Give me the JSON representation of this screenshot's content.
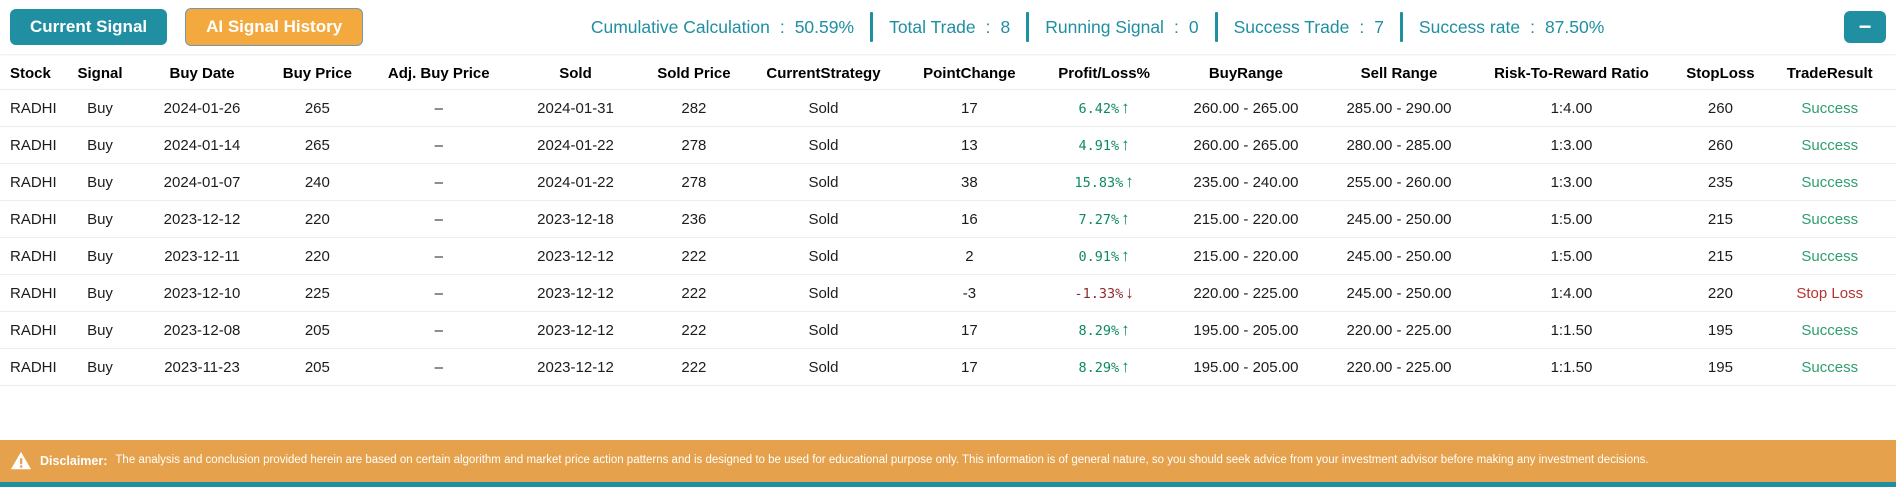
{
  "colors": {
    "teal": "#1F8FA1",
    "orange": "#F4A93F",
    "disclaimer": "#E5A14B",
    "success": "#2E9E6E",
    "loss": "#B23434",
    "profit-green": "#0F8A5F",
    "profit-red": "#8F2B2B"
  },
  "toolbar": {
    "current_signal_label": "Current Signal",
    "ai_signal_history_label": "AI Signal History",
    "collapse_label": "−"
  },
  "stats_bar": {
    "separator": ":",
    "stats": [
      {
        "label": "Cumulative Calculation",
        "value": "50.59%"
      },
      {
        "label": "Total Trade",
        "value": "8"
      },
      {
        "label": "Running Signal",
        "value": "0"
      },
      {
        "label": "Success Trade",
        "value": "7"
      },
      {
        "label": "Success rate",
        "value": "87.50%"
      }
    ]
  },
  "icons": {
    "up_arrow": "↑",
    "down_arrow": "↓"
  },
  "table": {
    "columns": [
      {
        "label": "Stock",
        "key": "stock",
        "align": "left"
      },
      {
        "label": "Signal",
        "key": "signal",
        "align": "center"
      },
      {
        "label": "Buy Date",
        "key": "buy_date",
        "align": "center"
      },
      {
        "label": "Buy Price",
        "key": "buy_price",
        "align": "center"
      },
      {
        "label": "Adj. Buy Price",
        "key": "adj_buy_price",
        "align": "center"
      },
      {
        "label": "Sold",
        "key": "sold_date",
        "align": "center"
      },
      {
        "label": "Sold Price",
        "key": "sold_price",
        "align": "center"
      },
      {
        "label": "CurrentStrategy",
        "key": "current_strategy",
        "align": "center"
      },
      {
        "label": "PointChange",
        "key": "point_change",
        "align": "center"
      },
      {
        "label": "Profit/Loss%",
        "key": "profit_loss",
        "align": "center"
      },
      {
        "label": "BuyRange",
        "key": "buy_range",
        "align": "center"
      },
      {
        "label": "Sell Range",
        "key": "sell_range",
        "align": "center"
      },
      {
        "label": "Risk-To-Reward Ratio",
        "key": "risk_reward",
        "align": "center"
      },
      {
        "label": "StopLoss",
        "key": "stop_loss",
        "align": "center"
      },
      {
        "label": "TradeResult",
        "key": "trade_result",
        "align": "center"
      }
    ],
    "rows": [
      {
        "stock": "RADHI",
        "signal": "Buy",
        "buy_date": "2024-01-26",
        "buy_price": "265",
        "adj_buy_price": "–",
        "sold_date": "2024-01-31",
        "sold_price": "282",
        "current_strategy": "Sold",
        "point_change": "17",
        "profit_loss": "6.42%",
        "direction": "up",
        "buy_range": "260.00 - 265.00",
        "sell_range": "285.00 - 290.00",
        "risk_reward": "1:4.00",
        "stop_loss": "260",
        "trade_result": "Success",
        "result_status": "success"
      },
      {
        "stock": "RADHI",
        "signal": "Buy",
        "buy_date": "2024-01-14",
        "buy_price": "265",
        "adj_buy_price": "–",
        "sold_date": "2024-01-22",
        "sold_price": "278",
        "current_strategy": "Sold",
        "point_change": "13",
        "profit_loss": "4.91%",
        "direction": "up",
        "buy_range": "260.00 - 265.00",
        "sell_range": "280.00 - 285.00",
        "risk_reward": "1:3.00",
        "stop_loss": "260",
        "trade_result": "Success",
        "result_status": "success"
      },
      {
        "stock": "RADHI",
        "signal": "Buy",
        "buy_date": "2024-01-07",
        "buy_price": "240",
        "adj_buy_price": "–",
        "sold_date": "2024-01-22",
        "sold_price": "278",
        "current_strategy": "Sold",
        "point_change": "38",
        "profit_loss": "15.83%",
        "direction": "up",
        "buy_range": "235.00 - 240.00",
        "sell_range": "255.00 - 260.00",
        "risk_reward": "1:3.00",
        "stop_loss": "235",
        "trade_result": "Success",
        "result_status": "success"
      },
      {
        "stock": "RADHI",
        "signal": "Buy",
        "buy_date": "2023-12-12",
        "buy_price": "220",
        "adj_buy_price": "–",
        "sold_date": "2023-12-18",
        "sold_price": "236",
        "current_strategy": "Sold",
        "point_change": "16",
        "profit_loss": "7.27%",
        "direction": "up",
        "buy_range": "215.00 - 220.00",
        "sell_range": "245.00 - 250.00",
        "risk_reward": "1:5.00",
        "stop_loss": "215",
        "trade_result": "Success",
        "result_status": "success"
      },
      {
        "stock": "RADHI",
        "signal": "Buy",
        "buy_date": "2023-12-11",
        "buy_price": "220",
        "adj_buy_price": "–",
        "sold_date": "2023-12-12",
        "sold_price": "222",
        "current_strategy": "Sold",
        "point_change": "2",
        "profit_loss": "0.91%",
        "direction": "up",
        "buy_range": "215.00 - 220.00",
        "sell_range": "245.00 - 250.00",
        "risk_reward": "1:5.00",
        "stop_loss": "215",
        "trade_result": "Success",
        "result_status": "success"
      },
      {
        "stock": "RADHI",
        "signal": "Buy",
        "buy_date": "2023-12-10",
        "buy_price": "225",
        "adj_buy_price": "–",
        "sold_date": "2023-12-12",
        "sold_price": "222",
        "current_strategy": "Sold",
        "point_change": "-3",
        "profit_loss": "-1.33%",
        "direction": "down",
        "buy_range": "220.00 - 225.00",
        "sell_range": "245.00 - 250.00",
        "risk_reward": "1:4.00",
        "stop_loss": "220",
        "trade_result": "Stop Loss",
        "result_status": "loss"
      },
      {
        "stock": "RADHI",
        "signal": "Buy",
        "buy_date": "2023-12-08",
        "buy_price": "205",
        "adj_buy_price": "–",
        "sold_date": "2023-12-12",
        "sold_price": "222",
        "current_strategy": "Sold",
        "point_change": "17",
        "profit_loss": "8.29%",
        "direction": "up",
        "buy_range": "195.00 - 205.00",
        "sell_range": "220.00 - 225.00",
        "risk_reward": "1:1.50",
        "stop_loss": "195",
        "trade_result": "Success",
        "result_status": "success"
      },
      {
        "stock": "RADHI",
        "signal": "Buy",
        "buy_date": "2023-11-23",
        "buy_price": "205",
        "adj_buy_price": "–",
        "sold_date": "2023-12-12",
        "sold_price": "222",
        "current_strategy": "Sold",
        "point_change": "17",
        "profit_loss": "8.29%",
        "direction": "up",
        "buy_range": "195.00 - 205.00",
        "sell_range": "220.00 - 225.00",
        "risk_reward": "1:1.50",
        "stop_loss": "195",
        "trade_result": "Success",
        "result_status": "success"
      }
    ]
  },
  "disclaimer": {
    "label": "Disclaimer:",
    "text": "The analysis and conclusion provided herein are based on certain algorithm and market price action patterns and is designed to be used for educational purpose only. This information is of general nature, so you should seek advice from your investment advisor before making any investment decisions."
  }
}
